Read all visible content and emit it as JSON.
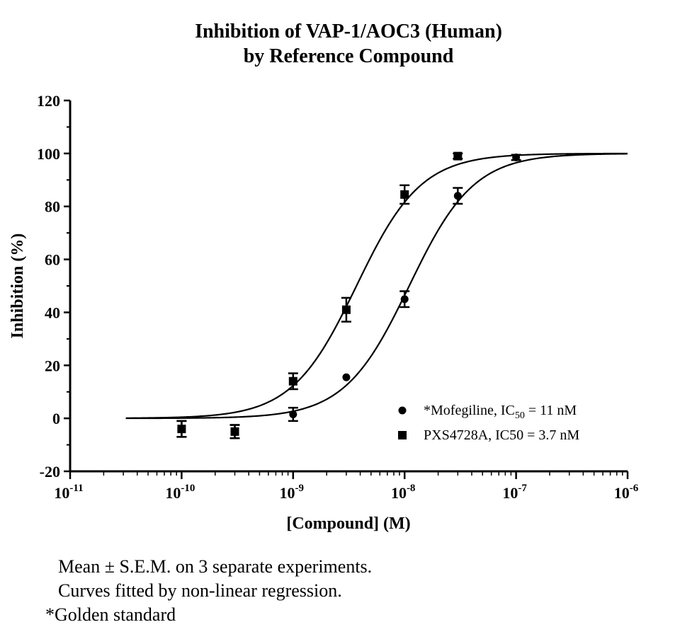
{
  "chart_data": {
    "type": "scatter",
    "title": [
      "Inhibition of VAP-1/AOC3 (Human)",
      "by Reference Compound"
    ],
    "xlabel": "[Compound] (M)",
    "ylabel": "Inhibition (%)",
    "xscale": "log",
    "xlim": [
      1e-11,
      1e-06
    ],
    "ylim": [
      -20,
      120
    ],
    "yticks": [
      -20,
      0,
      20,
      40,
      60,
      80,
      100,
      120
    ],
    "xtick_labels": [
      {
        "base": "10",
        "exp": "-11"
      },
      {
        "base": "10",
        "exp": "-10"
      },
      {
        "base": "10",
        "exp": "-9"
      },
      {
        "base": "10",
        "exp": "-8"
      },
      {
        "base": "10",
        "exp": "-7"
      },
      {
        "base": "10",
        "exp": "-6"
      }
    ],
    "legend_position": "lower-right",
    "grid": false,
    "series": [
      {
        "name": "*Mofegiline, IC50 = 11 nM",
        "legend_label": {
          "pre": "*Mofegiline, IC",
          "sub": "50",
          "post": " = 11 nM"
        },
        "marker": "circle",
        "color": "#000000",
        "x": [
          1e-10,
          3e-10,
          1e-09,
          3e-09,
          1e-08,
          3e-08,
          1e-07
        ],
        "y": [
          -4,
          -5,
          1.5,
          15.5,
          45,
          84,
          98.5
        ],
        "err": [
          3,
          2.5,
          2.5,
          0,
          3,
          3,
          1
        ],
        "fit_ic50": 1.1e-08,
        "fit_hill": 1.5
      },
      {
        "name": "PXS4728A, IC50 = 3.7 nM",
        "legend_label": {
          "pre": "PXS4728A, IC50 = 3.7 nM",
          "sub": "",
          "post": ""
        },
        "marker": "square",
        "color": "#000000",
        "x": [
          1e-10,
          3e-10,
          1e-09,
          3e-09,
          1e-08,
          3e-08
        ],
        "y": [
          -4,
          -5,
          14,
          41,
          84.5,
          99
        ],
        "err": [
          3,
          2.5,
          3,
          4.5,
          3.5,
          1
        ],
        "fit_ic50": 3.7e-09,
        "fit_hill": 1.5
      }
    ]
  },
  "notes": [
    "Mean ± S.E.M. on 3 separate experiments.",
    "Curves fitted by non-linear regression.",
    "*Golden standard"
  ]
}
